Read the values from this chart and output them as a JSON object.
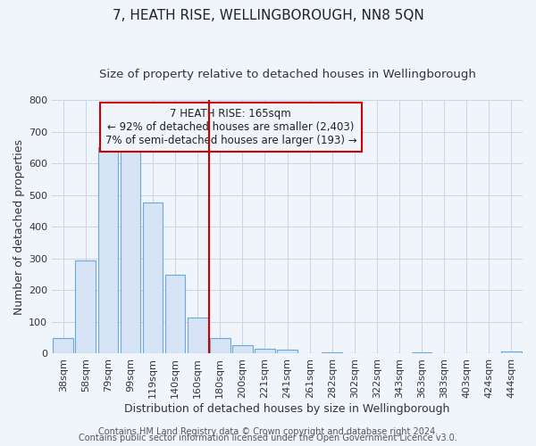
{
  "title": "7, HEATH RISE, WELLINGBOROUGH, NN8 5QN",
  "subtitle": "Size of property relative to detached houses in Wellingborough",
  "xlabel": "Distribution of detached houses by size in Wellingborough",
  "ylabel": "Number of detached properties",
  "categories": [
    "38sqm",
    "58sqm",
    "79sqm",
    "99sqm",
    "119sqm",
    "140sqm",
    "160sqm",
    "180sqm",
    "200sqm",
    "221sqm",
    "241sqm",
    "261sqm",
    "282sqm",
    "302sqm",
    "322sqm",
    "343sqm",
    "363sqm",
    "383sqm",
    "403sqm",
    "424sqm",
    "444sqm"
  ],
  "values": [
    48,
    293,
    651,
    665,
    478,
    250,
    113,
    48,
    28,
    15,
    13,
    0,
    5,
    0,
    0,
    0,
    5,
    0,
    0,
    0,
    8
  ],
  "bar_color": "#d6e4f5",
  "bar_edge_color": "#6aaad4",
  "grid_color": "#c8d4e8",
  "background_color": "#f0f4fb",
  "plot_bg_color": "#f0f4fb",
  "ylim": [
    0,
    800
  ],
  "yticks": [
    0,
    100,
    200,
    300,
    400,
    500,
    600,
    700,
    800
  ],
  "red_line_x": 6.5,
  "red_line_color": "#cc0000",
  "annotation_box_line1": "7 HEATH RISE: 165sqm",
  "annotation_box_line2": "← 92% of detached houses are smaller (2,403)",
  "annotation_box_line3": "7% of semi-detached houses are larger (193) →",
  "annotation_box_color": "#cc0000",
  "footer_line1": "Contains HM Land Registry data © Crown copyright and database right 2024.",
  "footer_line2": "Contains public sector information licensed under the Open Government Licence v3.0.",
  "title_fontsize": 11,
  "subtitle_fontsize": 9.5,
  "axis_label_fontsize": 9,
  "tick_fontsize": 8,
  "annotation_fontsize": 8.5,
  "footer_fontsize": 7
}
